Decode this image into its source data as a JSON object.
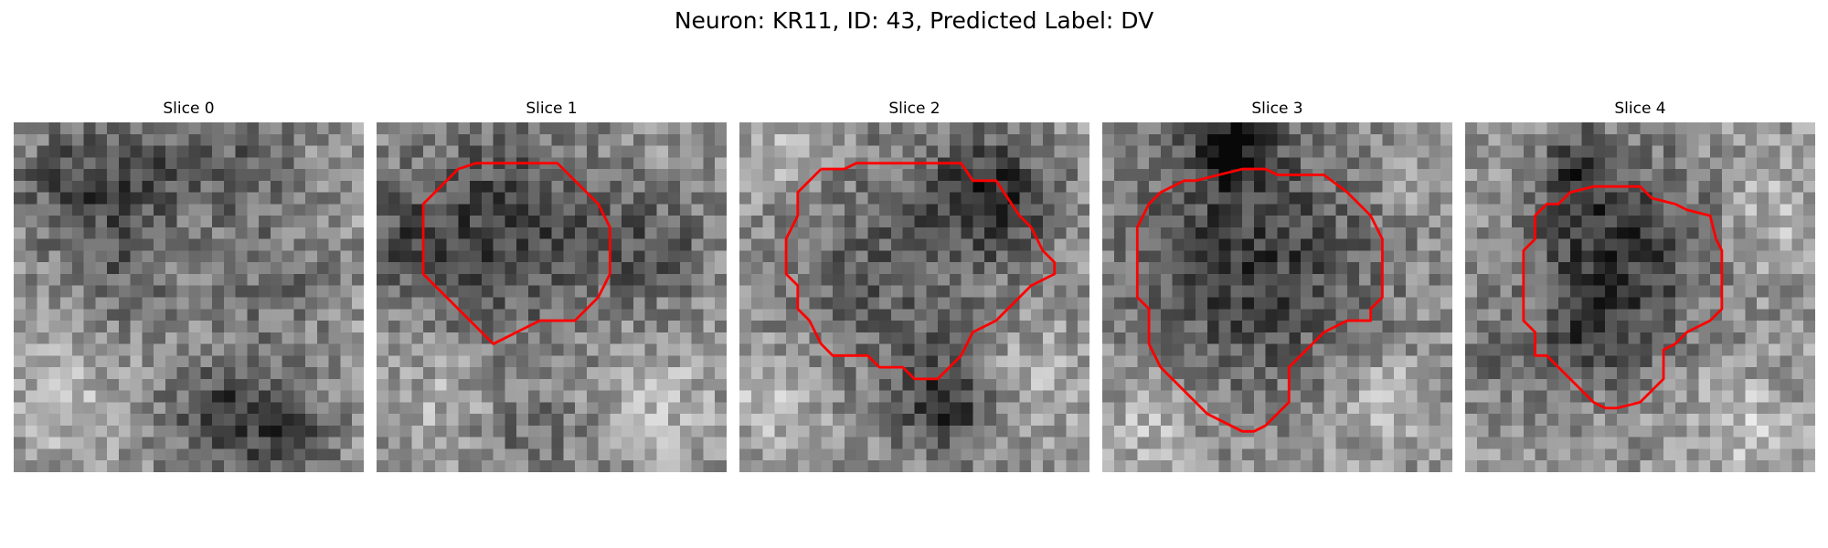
{
  "figure": {
    "title": "Neuron: KR11, ID: 43, Predicted Label: DV"
  },
  "panels": [
    {
      "title": "Slice 0",
      "has_contour": false,
      "seed": 11,
      "blobs": [
        {
          "cx": 5,
          "cy": 5,
          "r": 3.5,
          "d": 70
        },
        {
          "cx": 12,
          "cy": 4,
          "r": 3,
          "d": 60
        },
        {
          "cx": 20,
          "cy": 4,
          "r": 3.5,
          "d": 55
        },
        {
          "cx": 9,
          "cy": 12,
          "r": 4,
          "d": 50
        },
        {
          "cx": 22,
          "cy": 14,
          "r": 4,
          "d": 40
        },
        {
          "cx": 18,
          "cy": 25,
          "r": 3.5,
          "d": 85
        },
        {
          "cx": 24,
          "cy": 27,
          "r": 3,
          "d": 60
        },
        {
          "cx": 4,
          "cy": 24,
          "r": 3,
          "d": -35
        }
      ],
      "contour": []
    },
    {
      "title": "Slice 1",
      "has_contour": true,
      "seed": 23,
      "blobs": [
        {
          "cx": 11,
          "cy": 9,
          "r": 6.5,
          "d": 85
        },
        {
          "cx": 24,
          "cy": 11,
          "r": 3.5,
          "d": 55
        },
        {
          "cx": 2,
          "cy": 10,
          "r": 3,
          "d": 45
        },
        {
          "cx": 13,
          "cy": 27,
          "r": 4,
          "d": 35
        },
        {
          "cx": 24,
          "cy": 24,
          "r": 3,
          "d": -40
        },
        {
          "cx": 6,
          "cy": 24,
          "r": 3,
          "d": -30
        }
      ],
      "contour": [
        [
          8.5,
          3.5
        ],
        [
          15.5,
          3.5
        ],
        [
          17,
          5
        ],
        [
          19,
          7
        ],
        [
          20,
          9
        ],
        [
          20,
          13
        ],
        [
          19,
          15
        ],
        [
          17,
          17
        ],
        [
          14,
          17
        ],
        [
          12,
          18
        ],
        [
          10,
          19
        ],
        [
          7,
          16
        ],
        [
          5,
          14
        ],
        [
          4,
          13
        ],
        [
          4,
          10
        ],
        [
          4,
          7
        ],
        [
          6,
          5
        ],
        [
          7,
          4
        ],
        [
          8.5,
          3.5
        ]
      ]
    },
    {
      "title": "Slice 2",
      "has_contour": true,
      "seed": 37,
      "blobs": [
        {
          "cx": 12,
          "cy": 12,
          "r": 7,
          "d": 55
        },
        {
          "cx": 22,
          "cy": 6,
          "r": 4,
          "d": 90
        },
        {
          "cx": 18,
          "cy": 24,
          "r": 3.5,
          "d": 95
        },
        {
          "cx": 4,
          "cy": 3,
          "r": 2.5,
          "d": -55
        },
        {
          "cx": 24,
          "cy": 22,
          "r": 3,
          "d": -40
        },
        {
          "cx": 3,
          "cy": 24,
          "r": 3,
          "d": -45
        }
      ],
      "contour": [
        [
          7,
          4
        ],
        [
          9,
          4
        ],
        [
          10,
          3.5
        ],
        [
          19,
          3.5
        ],
        [
          20,
          5
        ],
        [
          22,
          5
        ],
        [
          24,
          8
        ],
        [
          25,
          9
        ],
        [
          26,
          11
        ],
        [
          27,
          12
        ],
        [
          27,
          13
        ],
        [
          25,
          14
        ],
        [
          24,
          15
        ],
        [
          23,
          16
        ],
        [
          22,
          17
        ],
        [
          20,
          18
        ],
        [
          19,
          20
        ],
        [
          17,
          22
        ],
        [
          15,
          22
        ],
        [
          14,
          21
        ],
        [
          12,
          21
        ],
        [
          11,
          20
        ],
        [
          8,
          20
        ],
        [
          7,
          19
        ],
        [
          6,
          17
        ],
        [
          5,
          16
        ],
        [
          5,
          14
        ],
        [
          4,
          13
        ],
        [
          4,
          10
        ],
        [
          5,
          8
        ],
        [
          5,
          6
        ],
        [
          6,
          5
        ],
        [
          7,
          4
        ]
      ]
    },
    {
      "title": "Slice 3",
      "has_contour": true,
      "seed": 53,
      "blobs": [
        {
          "cx": 13,
          "cy": 12,
          "r": 8,
          "d": 90
        },
        {
          "cx": 11,
          "cy": 2,
          "r": 2.5,
          "d": 110
        },
        {
          "cx": 4,
          "cy": 26,
          "r": 3,
          "d": -40
        },
        {
          "cx": 24,
          "cy": 24,
          "r": 3,
          "d": -45
        },
        {
          "cx": 26,
          "cy": 5,
          "r": 2.5,
          "d": -20
        }
      ],
      "contour": [
        [
          8,
          5
        ],
        [
          10,
          4.5
        ],
        [
          12,
          4
        ],
        [
          14,
          4
        ],
        [
          15,
          4.5
        ],
        [
          19,
          4.5
        ],
        [
          21,
          6
        ],
        [
          23,
          8
        ],
        [
          24,
          10
        ],
        [
          24,
          13
        ],
        [
          24,
          15
        ],
        [
          23,
          16
        ],
        [
          23,
          17
        ],
        [
          21,
          17
        ],
        [
          19,
          18
        ],
        [
          18,
          19
        ],
        [
          17,
          20
        ],
        [
          16,
          21
        ],
        [
          16,
          24
        ],
        [
          15,
          25
        ],
        [
          14,
          26
        ],
        [
          13,
          26.5
        ],
        [
          12,
          26.5
        ],
        [
          11,
          26
        ],
        [
          9,
          25
        ],
        [
          7,
          23
        ],
        [
          5,
          21
        ],
        [
          4,
          19
        ],
        [
          4,
          17
        ],
        [
          4,
          16
        ],
        [
          3,
          15
        ],
        [
          3,
          14
        ],
        [
          3,
          13
        ],
        [
          3,
          9
        ],
        [
          4,
          7
        ],
        [
          5,
          6
        ],
        [
          7,
          5
        ],
        [
          8,
          5
        ]
      ]
    },
    {
      "title": "Slice 4",
      "has_contour": true,
      "seed": 71,
      "blobs": [
        {
          "cx": 13,
          "cy": 11,
          "r": 6,
          "d": 95
        },
        {
          "cx": 9,
          "cy": 4,
          "r": 2.5,
          "d": 70
        },
        {
          "cx": 11,
          "cy": 19,
          "r": 3,
          "d": 55
        },
        {
          "cx": 3,
          "cy": 21,
          "r": 2.5,
          "d": 45
        },
        {
          "cx": 26,
          "cy": 8,
          "r": 3,
          "d": -40
        },
        {
          "cx": 24,
          "cy": 26,
          "r": 3,
          "d": -45
        },
        {
          "cx": 5,
          "cy": 4,
          "r": 2.5,
          "d": -35
        }
      ],
      "contour": [
        [
          11,
          5.5
        ],
        [
          15,
          5.5
        ],
        [
          16,
          6.5
        ],
        [
          18,
          7
        ],
        [
          19,
          7.5
        ],
        [
          21,
          8
        ],
        [
          21.5,
          10
        ],
        [
          22,
          11
        ],
        [
          22,
          16
        ],
        [
          21,
          17
        ],
        [
          20,
          17.5
        ],
        [
          19,
          18
        ],
        [
          18,
          19
        ],
        [
          17,
          19.5
        ],
        [
          17,
          22
        ],
        [
          16,
          23
        ],
        [
          15,
          24
        ],
        [
          13,
          24.5
        ],
        [
          12,
          24.5
        ],
        [
          11,
          24
        ],
        [
          10,
          23
        ],
        [
          9,
          22
        ],
        [
          8,
          21
        ],
        [
          7,
          20
        ],
        [
          6,
          20
        ],
        [
          6,
          18
        ],
        [
          5,
          17
        ],
        [
          5,
          14
        ],
        [
          5,
          12
        ],
        [
          5,
          11
        ],
        [
          6,
          10
        ],
        [
          6,
          9
        ],
        [
          6,
          8
        ],
        [
          7,
          7
        ],
        [
          8,
          7
        ],
        [
          9,
          6
        ],
        [
          11,
          5.5
        ]
      ]
    }
  ],
  "style": {
    "contour_color": "#ff0000"
  }
}
